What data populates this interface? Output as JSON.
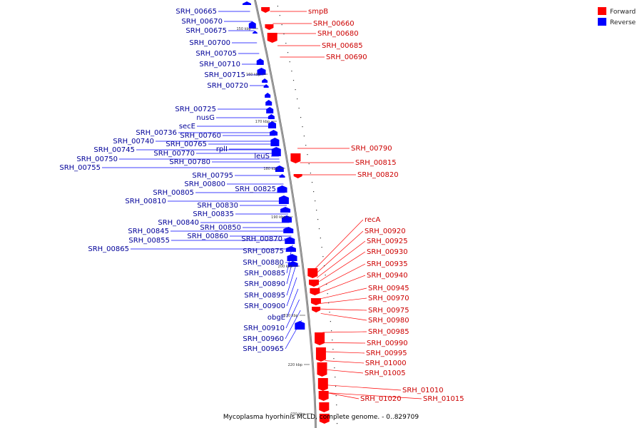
{
  "colors": {
    "forward": "#ff0000",
    "reverse": "#0000ff",
    "forward_label": "#cc0000",
    "reverse_label": "#000099",
    "backbone": "#999999"
  },
  "legend": [
    {
      "label": "Forward",
      "color": "#ff0000"
    },
    {
      "label": "Reverse",
      "color": "#0000ff"
    }
  ],
  "caption": "Mycoplasma hyorhinis MCLD, complete genome. - 0..829709",
  "ticks": [
    "150 kbp",
    "160 kbp",
    "170 kbp",
    "180 kbp",
    "190 kbp",
    "200 kbp",
    "210 kbp",
    "220 kbp",
    "230 kbp"
  ],
  "reverse_labels": [
    "SRH_00665",
    "SRH_00670",
    "SRH_00675",
    "SRH_00700",
    "SRH_00705",
    "SRH_00710",
    "SRH_00715",
    "SRH_00720",
    "SRH_00725",
    "nusG",
    "secE",
    "SRH_00736",
    "SRH_00760",
    "SRH_00740",
    "SRH_00765",
    "SRH_00745",
    "SRH_00770",
    "rplI",
    "SRH_00750",
    "leuS",
    "SRH_00780",
    "SRH_00755",
    "SRH_00795",
    "SRH_00800",
    "SRH_00805",
    "SRH_00825",
    "SRH_00810",
    "SRH_00830",
    "SRH_00835",
    "SRH_00840",
    "SRH_00850",
    "SRH_00845",
    "SRH_00860",
    "SRH_00855",
    "SRH_00870",
    "SRH_00865",
    "SRH_00875",
    "SRH_00880",
    "SRH_00885",
    "SRH_00890",
    "SRH_00895",
    "SRH_00900",
    "obgE",
    "SRH_00910",
    "SRH_00960",
    "SRH_00965"
  ],
  "forward_labels": [
    "smpB",
    "SRH_00660",
    "SRH_00680",
    "SRH_00685",
    "SRH_00690",
    "SRH_00790",
    "SRH_00815",
    "SRH_00820",
    "recA",
    "SRH_00920",
    "SRH_00925",
    "SRH_00930",
    "SRH_00935",
    "SRH_00940",
    "SRH_00945",
    "SRH_00970",
    "SRH_00975",
    "SRH_00980",
    "SRH_00985",
    "SRH_00990",
    "SRH_00995",
    "SRH_01000",
    "SRH_01005",
    "SRH_01010",
    "SRH_01015",
    "SRH_01020"
  ]
}
